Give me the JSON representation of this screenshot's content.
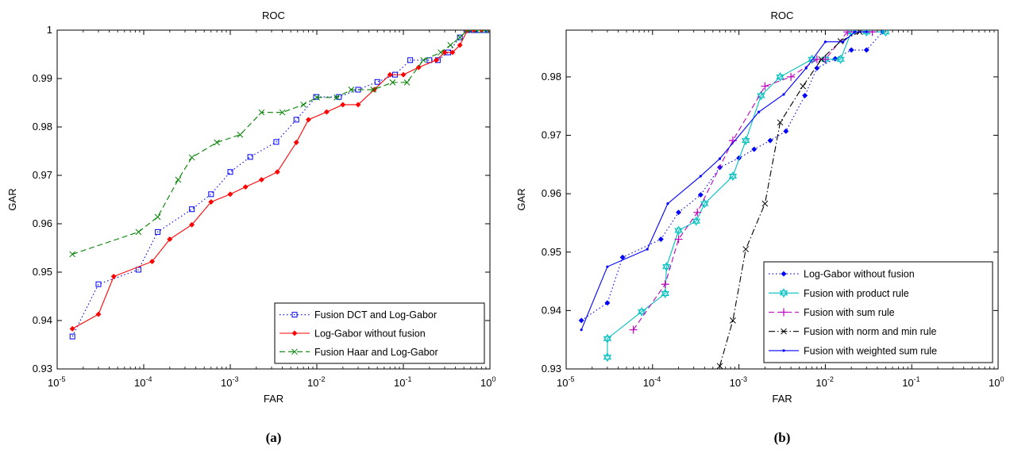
{
  "chart_data": [
    {
      "type": "line",
      "title": "ROC",
      "caption": "(a)",
      "xlabel": "FAR",
      "ylabel": "GAR",
      "xscale": "log",
      "xlim": [
        1e-05,
        1
      ],
      "ylim": [
        0.93,
        1
      ],
      "x_tick_labels": [
        "10-5",
        "10-4",
        "10-3",
        "10-2",
        "10-1",
        "100"
      ],
      "x_tick_mantissa": "10",
      "x_tick_exponents": [
        "-5",
        "-4",
        "-3",
        "-2",
        "-1",
        "0"
      ],
      "y_ticks": [
        "0.93",
        "0.94",
        "0.95",
        "0.96",
        "0.97",
        "0.98",
        "0.99",
        "1"
      ],
      "grid": false,
      "legend_position": "bottom-right",
      "series": [
        {
          "name": "Fusion DCT and Log-Gabor",
          "color": "#0000ff",
          "dash": "dotted",
          "marker": "square",
          "x": [
            1.5e-05,
            3e-05,
            8.7e-05,
            0.000145,
            0.00036,
            0.0006,
            0.001,
            0.0017,
            0.0034,
            0.0058,
            0.0098,
            0.018,
            0.03,
            0.05,
            0.08,
            0.12,
            0.2,
            0.25,
            0.33,
            0.45,
            0.55,
            0.65,
            0.75,
            0.85,
            0.95,
            1.0
          ],
          "y": [
            0.9367,
            0.9475,
            0.9505,
            0.9583,
            0.963,
            0.9661,
            0.9707,
            0.9738,
            0.9769,
            0.9815,
            0.9862,
            0.9862,
            0.9877,
            0.9893,
            0.9908,
            0.9938,
            0.9938,
            0.9938,
            0.9954,
            0.9985,
            1.0,
            1.0,
            1.0,
            1.0,
            1.0,
            1.0
          ]
        },
        {
          "name": "Log-Gabor without fusion",
          "color": "#ff0000",
          "dash": "solid",
          "marker": "dot",
          "x": [
            1.5e-05,
            3e-05,
            4.5e-05,
            0.000125,
            0.0002,
            0.00036,
            0.0006,
            0.001,
            0.0015,
            0.0023,
            0.0035,
            0.0058,
            0.008,
            0.013,
            0.02,
            0.03,
            0.046,
            0.07,
            0.1,
            0.15,
            0.24,
            0.3,
            0.37,
            0.45,
            0.55,
            0.65,
            0.8,
            1.0
          ],
          "y": [
            0.9383,
            0.9413,
            0.9491,
            0.9522,
            0.9568,
            0.9598,
            0.9645,
            0.9661,
            0.9676,
            0.9691,
            0.9707,
            0.9768,
            0.9815,
            0.9831,
            0.9846,
            0.9846,
            0.9877,
            0.9908,
            0.9908,
            0.9923,
            0.9938,
            0.9954,
            0.9954,
            0.9969,
            1.0,
            1.0,
            1.0,
            1.0
          ]
        },
        {
          "name": "Fusion Haar and Log-Gabor",
          "color": "#008000",
          "dash": "dashed",
          "marker": "x",
          "x": [
            1.5e-05,
            8.7e-05,
            0.000145,
            0.00025,
            0.00036,
            0.0007,
            0.0013,
            0.0023,
            0.004,
            0.007,
            0.01,
            0.017,
            0.025,
            0.045,
            0.075,
            0.11,
            0.17,
            0.27,
            0.35,
            0.45,
            0.55,
            0.7,
            0.85,
            1.0
          ],
          "y": [
            0.9537,
            0.9583,
            0.9614,
            0.9691,
            0.9737,
            0.9768,
            0.9784,
            0.983,
            0.983,
            0.9846,
            0.9861,
            0.9861,
            0.9877,
            0.9877,
            0.9892,
            0.9892,
            0.9938,
            0.9954,
            0.9969,
            0.9985,
            1.0,
            1.0,
            1.0,
            1.0
          ]
        }
      ]
    },
    {
      "type": "line",
      "title": "ROC",
      "caption": "(b)",
      "xlabel": "FAR",
      "ylabel": "GAR",
      "xscale": "log",
      "xlim": [
        1e-05,
        1
      ],
      "ylim": [
        0.93,
        0.988
      ],
      "x_tick_labels": [
        "10-5",
        "10-4",
        "10-3",
        "10-2",
        "10-1",
        "100"
      ],
      "x_tick_mantissa": "10",
      "x_tick_exponents": [
        "-5",
        "-4",
        "-3",
        "-2",
        "-1",
        "0"
      ],
      "y_ticks": [
        "0.93",
        "0.94",
        "0.95",
        "0.96",
        "0.97",
        "0.98"
      ],
      "grid": false,
      "legend_position": "bottom-right",
      "series": [
        {
          "name": "Log-Gabor without fusion",
          "color": "#0000ff",
          "dash": "dotted",
          "marker": "dot",
          "x": [
            1.5e-05,
            3e-05,
            4.5e-05,
            0.000125,
            0.0002,
            0.00036,
            0.0006,
            0.001,
            0.0015,
            0.0023,
            0.0035,
            0.0058,
            0.008,
            0.013,
            0.02,
            0.03,
            0.046
          ],
          "y": [
            0.9383,
            0.9413,
            0.9491,
            0.9522,
            0.9568,
            0.9598,
            0.9645,
            0.9661,
            0.9676,
            0.9691,
            0.9707,
            0.9768,
            0.9815,
            0.9831,
            0.9846,
            0.9846,
            0.9877
          ]
        },
        {
          "name": "Fusion with product rule",
          "color": "#00bfbf",
          "dash": "solid",
          "marker": "hexagram",
          "x": [
            3e-05,
            3e-05,
            7.5e-05,
            0.00014,
            0.000145,
            0.0002,
            0.00032,
            0.0004,
            0.00085,
            0.0012,
            0.0018,
            0.003,
            0.007,
            0.01,
            0.015,
            0.02,
            0.03,
            0.05
          ],
          "y": [
            0.932,
            0.9352,
            0.9398,
            0.9429,
            0.9475,
            0.9537,
            0.9553,
            0.9583,
            0.963,
            0.9691,
            0.9768,
            0.98,
            0.983,
            0.983,
            0.983,
            0.9877,
            0.9877,
            0.9877
          ]
        },
        {
          "name": "Fusion with sum rule",
          "color": "#bf00bf",
          "dash": "dashed",
          "marker": "plus",
          "x": [
            6e-05,
            0.00014,
            0.0002,
            0.00033,
            0.00085,
            0.002,
            0.004,
            0.008,
            0.01,
            0.018,
            0.035
          ],
          "y": [
            0.9367,
            0.9445,
            0.9522,
            0.9568,
            0.9691,
            0.9784,
            0.98,
            0.983,
            0.983,
            0.9877,
            0.9877
          ]
        },
        {
          "name": "Fusion with norm and min rule",
          "color": "#000000",
          "dash": "dashdot",
          "marker": "x",
          "x": [
            0.0006,
            0.00085,
            0.0012,
            0.002,
            0.003,
            0.0055,
            0.009,
            0.015,
            0.025
          ],
          "y": [
            0.9305,
            0.9383,
            0.9505,
            0.9583,
            0.9722,
            0.9784,
            0.983,
            0.9861,
            0.9877
          ]
        },
        {
          "name": "Fusion with weighted sum rule",
          "color": "#0000ff",
          "dash": "solid",
          "marker": "point",
          "x": [
            1.5e-05,
            3e-05,
            8.7e-05,
            0.00015,
            0.00036,
            0.0006,
            0.0017,
            0.0033,
            0.006,
            0.01,
            0.016,
            0.022,
            0.03
          ],
          "y": [
            0.9367,
            0.9475,
            0.9505,
            0.9583,
            0.963,
            0.966,
            0.974,
            0.977,
            0.9815,
            0.986,
            0.986,
            0.9877,
            0.9877
          ]
        }
      ]
    }
  ]
}
